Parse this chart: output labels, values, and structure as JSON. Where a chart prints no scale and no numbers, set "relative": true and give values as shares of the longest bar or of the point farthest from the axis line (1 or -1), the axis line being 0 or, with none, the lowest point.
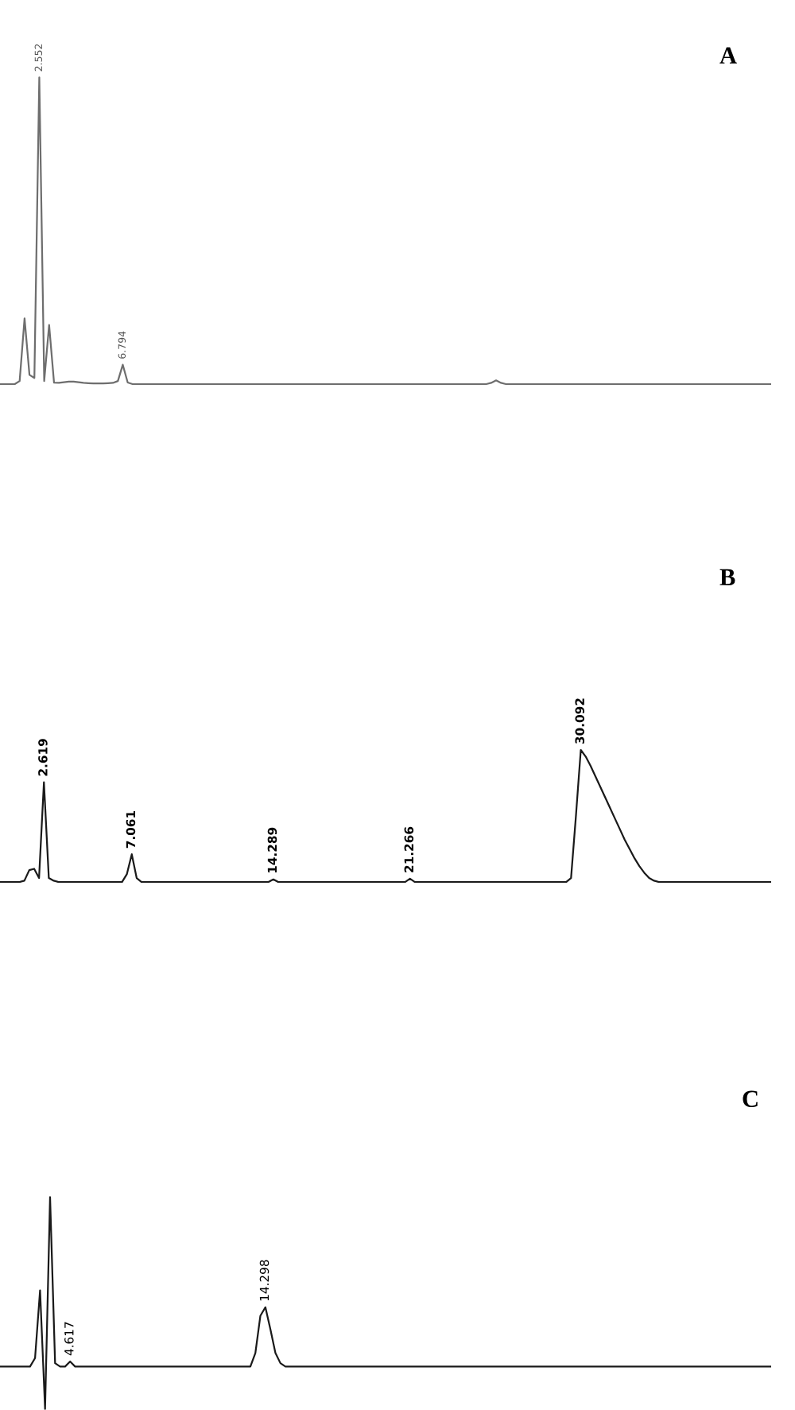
{
  "chart_data": [
    {
      "type": "line",
      "title": "A",
      "relative": true,
      "categories": [
        null,
        null,
        null,
        null,
        null,
        null,
        null,
        null,
        null,
        null,
        null,
        null,
        null,
        null,
        null,
        null,
        null,
        null,
        null,
        null,
        null,
        null,
        null,
        null,
        null,
        null,
        null,
        null,
        null,
        null,
        null,
        null,
        null,
        null,
        null,
        null,
        null,
        null,
        null,
        null,
        null,
        null,
        null,
        null,
        null,
        null,
        null,
        null,
        null,
        null,
        null,
        null,
        null,
        null,
        null,
        null,
        null,
        null,
        null,
        null,
        null,
        null,
        null,
        null,
        null,
        null,
        null,
        null,
        null,
        null,
        null,
        null,
        null,
        null,
        null,
        null,
        null,
        null,
        null,
        null,
        null,
        null,
        null,
        null,
        null,
        null,
        null,
        null,
        null,
        null,
        null,
        null,
        null,
        null,
        null,
        null,
        null,
        null,
        null,
        null,
        null,
        null,
        null,
        null,
        null,
        null,
        null,
        null,
        null,
        null,
        null,
        null,
        null,
        null,
        null,
        null,
        null,
        null,
        null,
        null,
        null,
        null,
        null,
        null,
        null,
        null,
        null,
        null,
        null,
        null,
        null,
        null,
        null,
        null,
        null,
        null,
        null,
        null,
        null,
        null,
        null,
        null,
        null,
        null,
        null,
        null,
        null,
        null,
        null,
        null,
        null,
        null,
        null,
        null,
        null,
        null,
        null,
        null
      ],
      "series": [
        {
          "color": "#6e6e6e",
          "values": [
            0,
            0,
            0,
            0,
            0.01,
            0.214,
            0.03,
            0.02,
            1,
            0.01,
            0.193,
            0.005,
            0.004,
            0.006,
            0.008,
            0.008,
            0.006,
            0.004,
            0.003,
            0.002,
            0.002,
            0.002,
            0.003,
            0.004,
            0.01,
            0.063,
            0.005,
            0,
            0,
            0,
            0,
            0,
            0,
            0,
            0,
            0,
            0,
            0,
            0,
            0,
            0,
            0,
            0,
            0,
            0,
            0,
            0,
            0,
            0,
            0,
            0,
            0,
            0,
            0,
            0,
            0,
            0,
            0,
            0,
            0,
            0,
            0,
            0,
            0,
            0,
            0,
            0,
            0,
            0,
            0,
            0,
            0,
            0,
            0,
            0,
            0,
            0,
            0,
            0,
            0,
            0,
            0,
            0,
            0,
            0,
            0,
            0,
            0,
            0,
            0,
            0,
            0,
            0,
            0,
            0,
            0,
            0,
            0,
            0,
            0,
            0.004,
            0.012,
            0.004,
            0,
            0,
            0,
            0,
            0,
            0,
            0,
            0,
            0,
            0,
            0,
            0,
            0,
            0,
            0,
            0,
            0,
            0,
            0,
            0,
            0,
            0,
            0,
            0,
            0,
            0,
            0,
            0,
            0,
            0,
            0,
            0,
            0,
            0,
            0,
            0,
            0,
            0,
            0,
            0,
            0,
            0,
            0,
            0,
            0,
            0,
            0,
            0,
            0,
            0,
            0,
            0,
            0,
            0,
            0
          ]
        }
      ],
      "annotations": [
        {
          "text": "2.552",
          "y": 1
        },
        {
          "text": "6.794",
          "y": 0.063
        }
      ]
    },
    {
      "type": "line",
      "title": "B",
      "relative": true,
      "categories": [
        null,
        null,
        null,
        null,
        null,
        null,
        null,
        null,
        null,
        null,
        null,
        null,
        null,
        null,
        null,
        null,
        null,
        null,
        null,
        null,
        null,
        null,
        null,
        null,
        null,
        null,
        null,
        null,
        null,
        null,
        null,
        null,
        null,
        null,
        null,
        null,
        null,
        null,
        null,
        null,
        null,
        null,
        null,
        null,
        null,
        null,
        null,
        null,
        null,
        null,
        null,
        null,
        null,
        null,
        null,
        null,
        null,
        null,
        null,
        null,
        null,
        null,
        null,
        null,
        null,
        null,
        null,
        null,
        null,
        null,
        null,
        null,
        null,
        null,
        null,
        null,
        null,
        null,
        null,
        null,
        null,
        null,
        null,
        null,
        null,
        null,
        null,
        null,
        null,
        null,
        null,
        null,
        null,
        null,
        null,
        null,
        null,
        null,
        null,
        null,
        null,
        null,
        null,
        null,
        null,
        null,
        null,
        null,
        null,
        null,
        null,
        null,
        null,
        null,
        null,
        null,
        null,
        null,
        null,
        null,
        null,
        null,
        null,
        null,
        null,
        null,
        null,
        null,
        null,
        null,
        null,
        null,
        null,
        null,
        null,
        null,
        null,
        null,
        null,
        null,
        null,
        null,
        null,
        null,
        null,
        null,
        null,
        null,
        null,
        null,
        null,
        null,
        null,
        null,
        null,
        null,
        null,
        null,
        null
      ],
      "series": [
        {
          "color": "#1a1a1a",
          "values": [
            0,
            0,
            0,
            0,
            0,
            0.01,
            0.09,
            0.1,
            0.03,
            0.756,
            0.03,
            0.01,
            0,
            0,
            0,
            0,
            0,
            0,
            0,
            0,
            0,
            0,
            0,
            0,
            0,
            0,
            0.06,
            0.21,
            0.03,
            0,
            0,
            0,
            0,
            0,
            0,
            0,
            0,
            0,
            0,
            0,
            0,
            0,
            0,
            0,
            0,
            0,
            0,
            0,
            0,
            0,
            0,
            0,
            0,
            0,
            0,
            0,
            0.02,
            0,
            0,
            0,
            0,
            0,
            0,
            0,
            0,
            0,
            0,
            0,
            0,
            0,
            0,
            0,
            0,
            0,
            0,
            0,
            0,
            0,
            0,
            0,
            0,
            0,
            0,
            0,
            0.025,
            0,
            0,
            0,
            0,
            0,
            0,
            0,
            0,
            0,
            0,
            0,
            0,
            0,
            0,
            0,
            0,
            0,
            0,
            0,
            0,
            0,
            0,
            0,
            0,
            0,
            0,
            0,
            0,
            0,
            0,
            0,
            0,
            0.03,
            0.5,
            1,
            0.95,
            0.88,
            0.8,
            0.72,
            0.64,
            0.56,
            0.48,
            0.4,
            0.32,
            0.25,
            0.18,
            0.12,
            0.07,
            0.03,
            0.01,
            0,
            0,
            0,
            0,
            0,
            0,
            0,
            0,
            0,
            0,
            0,
            0,
            0,
            0,
            0,
            0,
            0,
            0,
            0,
            0,
            0,
            0,
            0,
            0
          ]
        }
      ],
      "annotations": [
        {
          "text": "2.619",
          "y": 0.756
        },
        {
          "text": "7.061",
          "y": 0.21
        },
        {
          "text": "14.289",
          "y": 0.02
        },
        {
          "text": "21.266",
          "y": 0.025
        },
        {
          "text": "30.092",
          "y": 1
        }
      ]
    },
    {
      "type": "line",
      "title": "C",
      "relative": true,
      "categories": [
        null,
        null,
        null,
        null,
        null,
        null,
        null,
        null,
        null,
        null,
        null,
        null,
        null,
        null,
        null,
        null,
        null,
        null,
        null,
        null,
        null,
        null,
        null,
        null,
        null,
        null,
        null,
        null,
        null,
        null,
        null,
        null,
        null,
        null,
        null,
        null,
        null,
        null,
        null,
        null,
        null,
        null,
        null,
        null,
        null,
        null,
        null,
        null,
        null,
        null,
        null,
        null,
        null,
        null,
        null,
        null,
        null,
        null,
        null,
        null,
        null,
        null,
        null,
        null,
        null,
        null,
        null,
        null,
        null,
        null,
        null,
        null,
        null,
        null,
        null,
        null,
        null,
        null,
        null,
        null,
        null,
        null,
        null,
        null,
        null,
        null,
        null,
        null,
        null,
        null,
        null,
        null,
        null,
        null,
        null,
        null,
        null,
        null,
        null,
        null,
        null,
        null,
        null,
        null,
        null,
        null,
        null,
        null,
        null,
        null,
        null,
        null,
        null,
        null,
        null,
        null,
        null,
        null,
        null,
        null,
        null,
        null,
        null,
        null,
        null,
        null,
        null,
        null,
        null,
        null,
        null,
        null,
        null,
        null,
        null,
        null,
        null,
        null,
        null,
        null,
        null,
        null,
        null,
        null,
        null,
        null,
        null,
        null,
        null,
        null,
        null,
        null,
        null,
        null,
        null
      ],
      "series": [
        {
          "color": "#1a1a1a",
          "values": [
            0.2,
            0.2,
            0.2,
            0.2,
            0.2,
            0.2,
            0.2,
            0.24,
            0.56,
            0,
            1,
            0.216,
            0.2,
            0.2,
            0.224,
            0.2,
            0.2,
            0.2,
            0.2,
            0.2,
            0.2,
            0.2,
            0.2,
            0.2,
            0.2,
            0.2,
            0.2,
            0.2,
            0.2,
            0.2,
            0.2,
            0.2,
            0.2,
            0.2,
            0.2,
            0.2,
            0.2,
            0.2,
            0.2,
            0.2,
            0.2,
            0.2,
            0.2,
            0.2,
            0.2,
            0.2,
            0.2,
            0.2,
            0.2,
            0.2,
            0.2,
            0.264,
            0.44,
            0.48,
            0.376,
            0.264,
            0.216,
            0.2,
            0.2,
            0.2,
            0.2,
            0.2,
            0.2,
            0.2,
            0.2,
            0.2,
            0.2,
            0.2,
            0.2,
            0.2,
            0.2,
            0.2,
            0.2,
            0.2,
            0.2,
            0.2,
            0.2,
            0.2,
            0.2,
            0.2,
            0.2,
            0.2,
            0.2,
            0.2,
            0.2,
            0.2,
            0.2,
            0.2,
            0.2,
            0.2,
            0.2,
            0.2,
            0.2,
            0.2,
            0.2,
            0.2,
            0.2,
            0.2,
            0.2,
            0.2,
            0.2,
            0.2,
            0.2,
            0.2,
            0.2,
            0.2,
            0.2,
            0.2,
            0.2,
            0.2,
            0.2,
            0.2,
            0.2,
            0.2,
            0.2,
            0.2,
            0.2,
            0.2,
            0.2,
            0.2,
            0.2,
            0.2,
            0.2,
            0.2,
            0.2,
            0.2,
            0.2,
            0.2,
            0.2,
            0.2,
            0.2,
            0.2,
            0.2,
            0.2,
            0.2,
            0.2,
            0.2,
            0.2,
            0.2,
            0.2,
            0.2,
            0.2,
            0.2,
            0.2,
            0.2,
            0.2,
            0.2,
            0.2,
            0.2,
            0.2,
            0.2,
            0.2,
            0.2,
            0.2,
            0.2
          ]
        }
      ],
      "annotations": [
        {
          "text": "4.617",
          "y": 0.224
        },
        {
          "text": "14.298",
          "y": 0.48
        }
      ]
    }
  ]
}
